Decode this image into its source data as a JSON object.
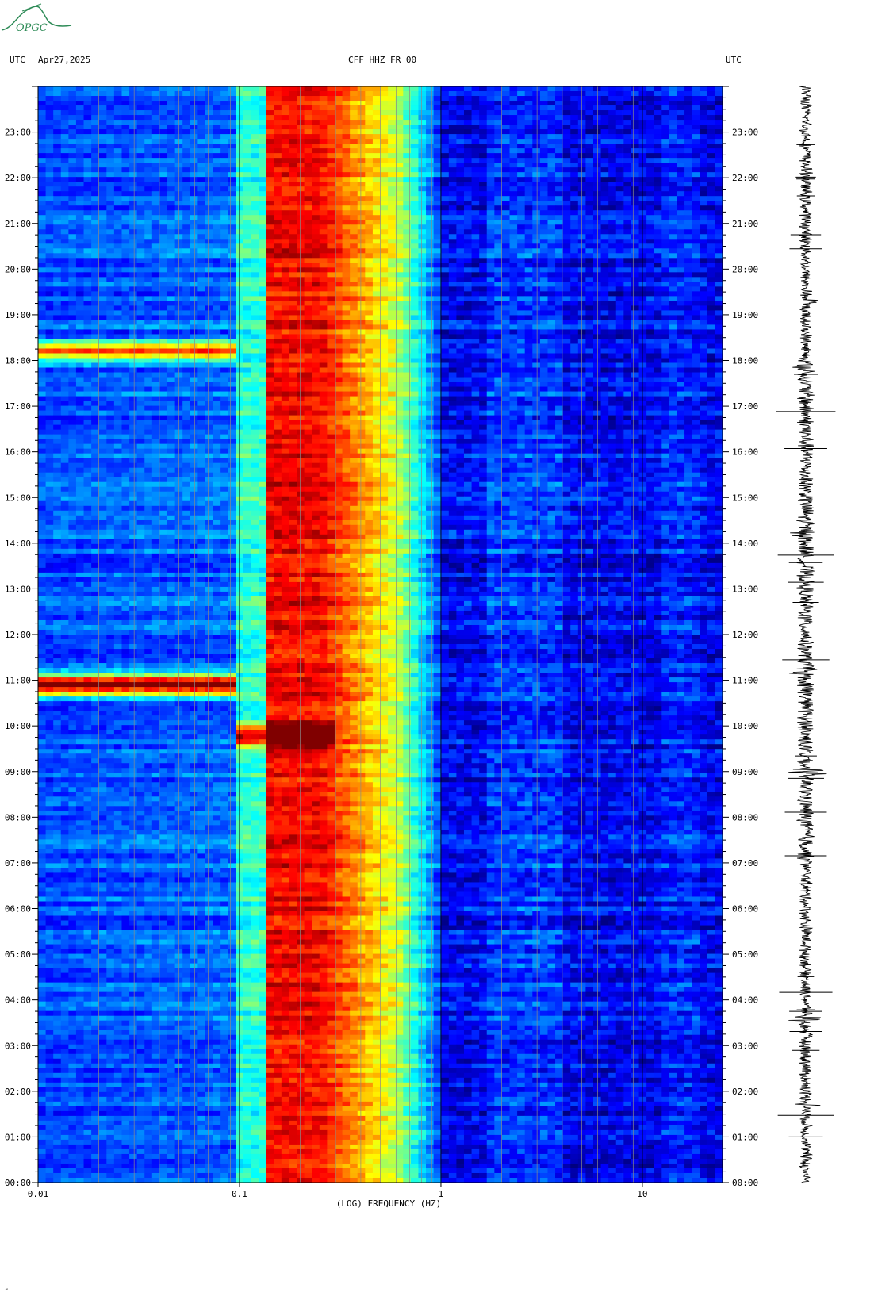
{
  "header": {
    "left_tz": "UTC",
    "date": "Apr27,2025",
    "station": "CFF HHZ FR 00",
    "right_tz": "UTC"
  },
  "logo": {
    "text": "OPGC",
    "color": "#2e8b57"
  },
  "colors": {
    "background_low": "#0a1fd6",
    "scale": [
      "#00007f",
      "#0000ff",
      "#007fff",
      "#00ffff",
      "#7fff7f",
      "#ffff00",
      "#ff7f00",
      "#ff0000",
      "#7f0000"
    ]
  },
  "chart_data": {
    "type": "heatmap",
    "title": "CFF HHZ FR 00",
    "xlabel": "(LOG) FREQUENCY (HZ)",
    "x_scale": "log",
    "xlim": [
      0.01,
      25
    ],
    "x_ticks": [
      {
        "value": 0.01,
        "label": "0.01"
      },
      {
        "value": 0.1,
        "label": "0.1"
      },
      {
        "value": 1,
        "label": "1"
      },
      {
        "value": 10,
        "label": "10"
      }
    ],
    "ylabel_left": "UTC",
    "ylabel_right": "UTC",
    "y_ticks": [
      "00:00",
      "01:00",
      "02:00",
      "03:00",
      "04:00",
      "05:00",
      "06:00",
      "07:00",
      "08:00",
      "09:00",
      "10:00",
      "11:00",
      "12:00",
      "13:00",
      "14:00",
      "15:00",
      "16:00",
      "17:00",
      "18:00",
      "19:00",
      "20:00",
      "21:00",
      "22:00",
      "23:00"
    ],
    "ylim_hours": [
      0,
      24
    ],
    "grid": true,
    "microseism_peak_hz": [
      0.14,
      0.25
    ],
    "events": [
      {
        "time_hours": 10.9,
        "freq_range_hz": [
          0.01,
          0.1
        ],
        "level": "very high"
      },
      {
        "time_hours": 18.2,
        "freq_range_hz": [
          0.01,
          0.1
        ],
        "level": "high"
      },
      {
        "time_hours": 9.8,
        "freq_range_hz": [
          0.1,
          0.3
        ],
        "level": "high"
      }
    ],
    "seismogram": {
      "label": "trace",
      "events_hours": [
        10.8,
        9.0,
        17.8,
        14.2,
        3.6,
        19.3,
        1.7,
        11.2
      ]
    }
  }
}
